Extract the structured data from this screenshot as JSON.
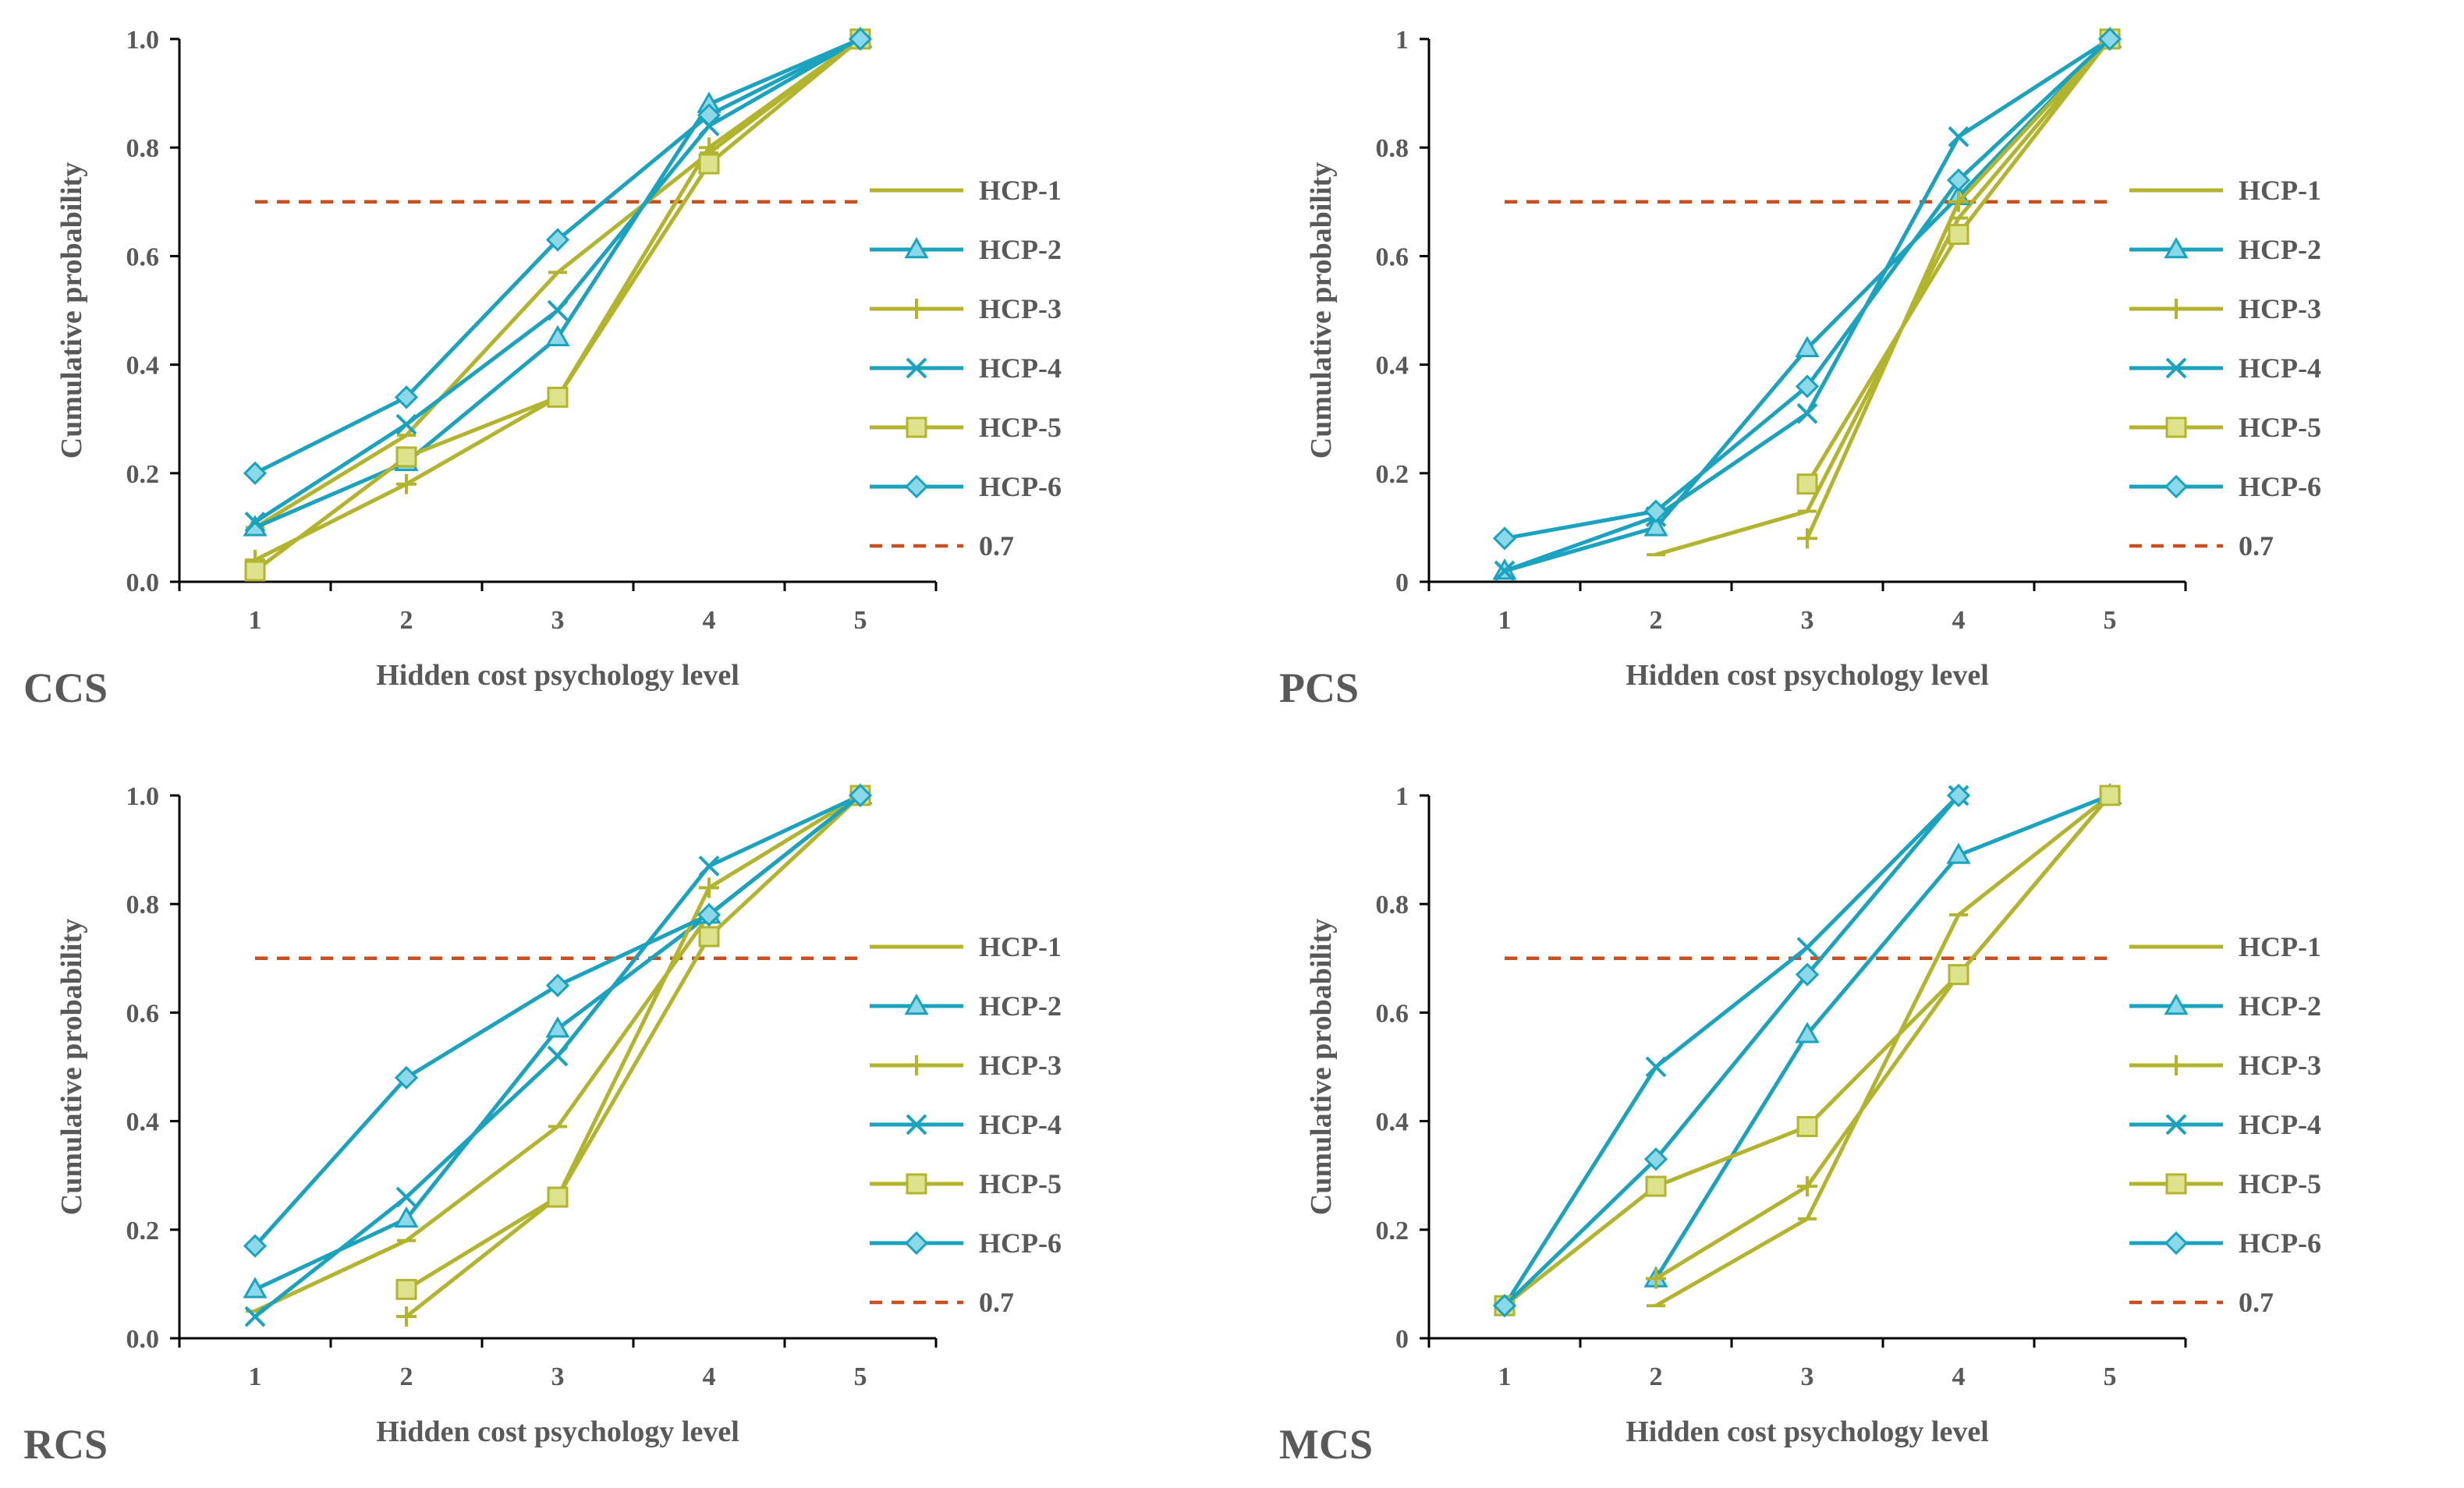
{
  "figure": {
    "colors": {
      "olive": "#B3B42E",
      "teal": "#1AA2BF",
      "marker_fill_teal": "#8BD8E8",
      "marker_fill_olive": "#DDE38C",
      "threshold": "#C9501E",
      "axis": "#000000",
      "text": "#595959"
    }
  },
  "chart_data": [
    {
      "type": "line",
      "panel_label": "CCS",
      "xlabel": "Hidden cost psychology level",
      "ylabel": "Cumulative probability",
      "x": [
        1,
        2,
        3,
        4,
        5
      ],
      "xlim": [
        0.5,
        5.5
      ],
      "ylim": [
        0,
        1
      ],
      "yticks": [
        0,
        0.2,
        0.4,
        0.6,
        0.8,
        1.0
      ],
      "ytick_labels": [
        "0.0",
        "0.2",
        "0.4",
        "0.6",
        "0.8",
        "1.0"
      ],
      "xtick_labels": [
        "1",
        "2",
        "3",
        "4",
        "5"
      ],
      "legend_position": "right",
      "series": [
        {
          "name": "HCP-1",
          "marker": "dash",
          "color": "olive",
          "values": [
            0.1,
            0.27,
            0.57,
            0.79,
            1.0
          ]
        },
        {
          "name": "HCP-2",
          "marker": "triangle",
          "color": "teal",
          "values": [
            0.1,
            0.22,
            0.45,
            0.88,
            1.0
          ]
        },
        {
          "name": "HCP-3",
          "marker": "plus",
          "color": "olive",
          "values": [
            0.04,
            0.18,
            0.34,
            0.8,
            1.0
          ]
        },
        {
          "name": "HCP-4",
          "marker": "x",
          "color": "teal",
          "values": [
            0.11,
            0.29,
            0.5,
            0.84,
            1.0
          ]
        },
        {
          "name": "HCP-5",
          "marker": "square",
          "color": "olive",
          "values": [
            0.02,
            0.23,
            0.34,
            0.77,
            1.0
          ]
        },
        {
          "name": "HCP-6",
          "marker": "diamond",
          "color": "teal",
          "values": [
            0.2,
            0.34,
            0.63,
            0.86,
            1.0
          ]
        }
      ],
      "threshold": {
        "name": "0.7",
        "value": 0.7,
        "x_range": [
          1,
          5
        ]
      }
    },
    {
      "type": "line",
      "panel_label": "PCS",
      "xlabel": "Hidden cost psychology level",
      "ylabel": "Cumulative probability",
      "x": [
        1,
        2,
        3,
        4,
        5
      ],
      "xlim": [
        0.5,
        5.5
      ],
      "ylim": [
        0,
        1
      ],
      "yticks": [
        0,
        0.2,
        0.4,
        0.6,
        0.8,
        1.0
      ],
      "ytick_labels": [
        "0",
        "0.2",
        "0.4",
        "0.6",
        "0.8",
        "1"
      ],
      "xtick_labels": [
        "1",
        "2",
        "3",
        "4",
        "5"
      ],
      "legend_position": "right",
      "series": [
        {
          "name": "HCP-1",
          "marker": "dash",
          "color": "olive",
          "values": [
            null,
            0.05,
            0.13,
            0.67,
            1.0
          ]
        },
        {
          "name": "HCP-2",
          "marker": "triangle",
          "color": "teal",
          "values": [
            0.02,
            0.1,
            0.43,
            0.71,
            1.0
          ]
        },
        {
          "name": "HCP-3",
          "marker": "plus",
          "color": "olive",
          "values": [
            null,
            null,
            0.08,
            0.7,
            1.0
          ]
        },
        {
          "name": "HCP-4",
          "marker": "x",
          "color": "teal",
          "values": [
            0.02,
            0.12,
            0.31,
            0.82,
            1.0
          ]
        },
        {
          "name": "HCP-5",
          "marker": "square",
          "color": "olive",
          "values": [
            null,
            null,
            0.18,
            0.64,
            1.0
          ]
        },
        {
          "name": "HCP-6",
          "marker": "diamond",
          "color": "teal",
          "values": [
            0.08,
            0.13,
            0.36,
            0.74,
            1.0
          ]
        }
      ],
      "threshold": {
        "name": "0.7",
        "value": 0.7,
        "x_range": [
          1,
          5
        ]
      }
    },
    {
      "type": "line",
      "panel_label": "RCS",
      "xlabel": "Hidden cost psychology level",
      "ylabel": "Cumulative probability",
      "x": [
        1,
        2,
        3,
        4,
        5
      ],
      "xlim": [
        0.5,
        5.5
      ],
      "ylim": [
        0,
        1
      ],
      "yticks": [
        0,
        0.2,
        0.4,
        0.6,
        0.8,
        1.0
      ],
      "ytick_labels": [
        "0.0",
        "0.2",
        "0.4",
        "0.6",
        "0.8",
        "1.0"
      ],
      "xtick_labels": [
        "1",
        "2",
        "3",
        "4",
        "5"
      ],
      "legend_position": "right",
      "series": [
        {
          "name": "HCP-1",
          "marker": "dash",
          "color": "olive",
          "values": [
            0.05,
            0.18,
            0.39,
            0.78,
            1.0
          ]
        },
        {
          "name": "HCP-2",
          "marker": "triangle",
          "color": "teal",
          "values": [
            0.09,
            0.22,
            0.57,
            0.78,
            1.0
          ]
        },
        {
          "name": "HCP-3",
          "marker": "plus",
          "color": "olive",
          "values": [
            null,
            0.04,
            0.26,
            0.83,
            1.0
          ]
        },
        {
          "name": "HCP-4",
          "marker": "x",
          "color": "teal",
          "values": [
            0.04,
            0.26,
            0.52,
            0.87,
            1.0
          ]
        },
        {
          "name": "HCP-5",
          "marker": "square",
          "color": "olive",
          "values": [
            null,
            0.09,
            0.26,
            0.74,
            1.0
          ]
        },
        {
          "name": "HCP-6",
          "marker": "diamond",
          "color": "teal",
          "values": [
            0.17,
            0.48,
            0.65,
            0.78,
            1.0
          ]
        }
      ],
      "threshold": {
        "name": "0.7",
        "value": 0.7,
        "x_range": [
          1,
          5
        ]
      }
    },
    {
      "type": "line",
      "panel_label": "MCS",
      "xlabel": "Hidden cost psychology level",
      "ylabel": "Cumulative probability",
      "x": [
        1,
        2,
        3,
        4,
        5
      ],
      "xlim": [
        0.5,
        5.5
      ],
      "ylim": [
        0,
        1
      ],
      "yticks": [
        0,
        0.2,
        0.4,
        0.6,
        0.8,
        1.0
      ],
      "ytick_labels": [
        "0",
        "0.2",
        "0.4",
        "0.6",
        "0.8",
        "1"
      ],
      "xtick_labels": [
        "1",
        "2",
        "3",
        "4",
        "5"
      ],
      "legend_position": "right",
      "series": [
        {
          "name": "HCP-1",
          "marker": "dash",
          "color": "olive",
          "values": [
            null,
            0.06,
            0.22,
            0.78,
            1.0
          ]
        },
        {
          "name": "HCP-2",
          "marker": "triangle",
          "color": "teal",
          "values": [
            null,
            0.11,
            0.56,
            0.89,
            1.0
          ]
        },
        {
          "name": "HCP-3",
          "marker": "plus",
          "color": "olive",
          "values": [
            null,
            0.11,
            0.28,
            0.67,
            1.0
          ]
        },
        {
          "name": "HCP-4",
          "marker": "x",
          "color": "teal",
          "values": [
            0.06,
            0.5,
            0.72,
            1.0,
            null
          ]
        },
        {
          "name": "HCP-5",
          "marker": "square",
          "color": "olive",
          "values": [
            0.06,
            0.28,
            0.39,
            0.67,
            1.0
          ]
        },
        {
          "name": "HCP-6",
          "marker": "diamond",
          "color": "teal",
          "values": [
            0.06,
            0.33,
            0.67,
            1.0,
            null
          ]
        }
      ],
      "threshold": {
        "name": "0.7",
        "value": 0.7,
        "x_range": [
          1,
          5
        ]
      }
    }
  ]
}
